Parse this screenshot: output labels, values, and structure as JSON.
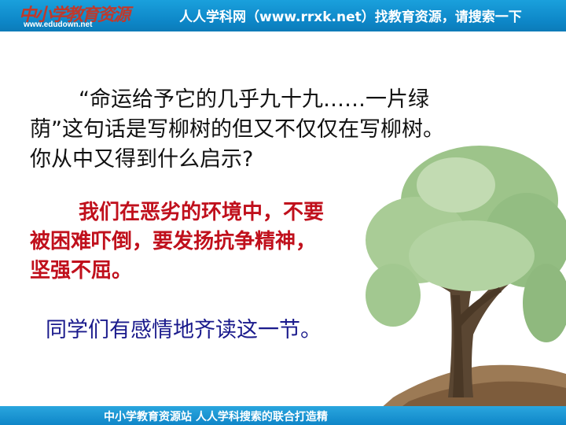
{
  "header": {
    "logo_text": "中小学教育资源",
    "logo_url": "www.edudown.net",
    "banner": "人人学科网（www.rrxk.net）找教育资源，请搜索一下"
  },
  "question": {
    "line1": "“命运给予它的几乎九十九……一片绿",
    "line2": "荫”这句话是写柳树的但又不仅仅在写柳树。",
    "line3": "你从中又得到什么启示?"
  },
  "answer": {
    "line1": "我们在恶劣的环境中，不要",
    "line2": "被困难吓倒，要发扬抗争精神，",
    "line3": "坚强不屈。"
  },
  "instruction": "同学们有感情地齐读这一节。",
  "footer": {
    "text": "中小学教育资源站 人人学科搜索的联合打造精"
  },
  "colors": {
    "header_blue": "#0d86c7",
    "answer_red": "#c0101c",
    "instruction_navy": "#1a1a8c"
  }
}
